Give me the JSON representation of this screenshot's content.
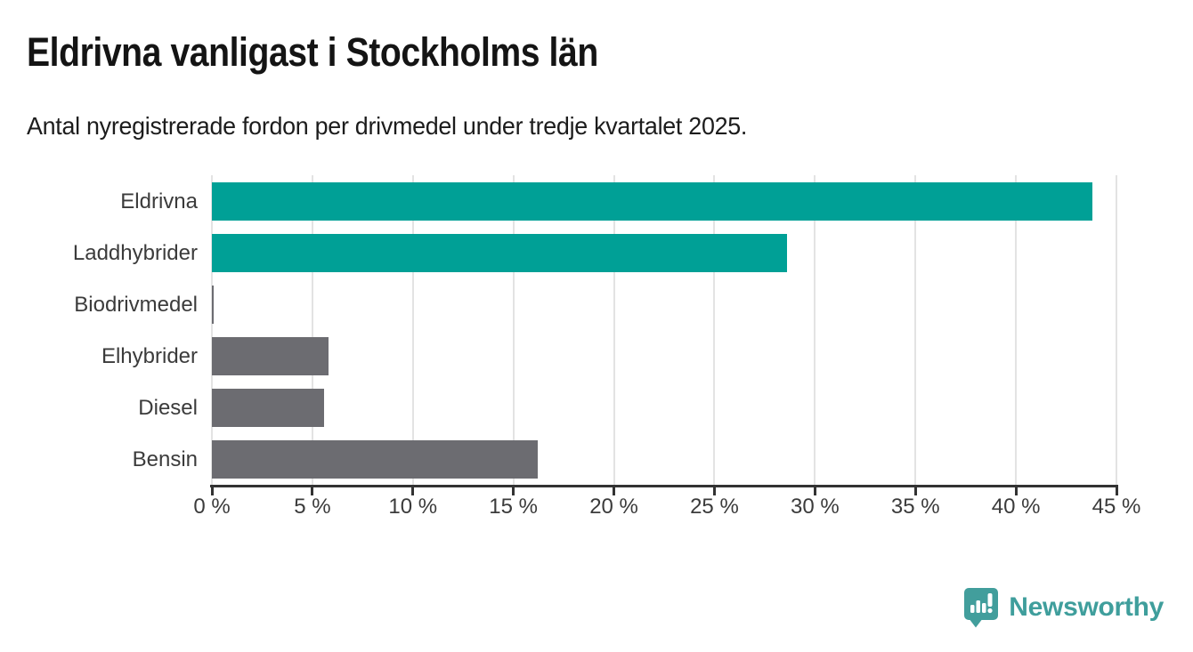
{
  "header": {
    "title": "Eldrivna vanligast i Stockholms län",
    "subtitle": "Antal nyregistrerade fordon per drivmedel under tredje kvartalet 2025."
  },
  "chart_data": {
    "type": "bar",
    "orientation": "horizontal",
    "title": "Eldrivna vanligast i Stockholms län",
    "subtitle": "Antal nyregistrerade fordon per drivmedel under tredje kvartalet 2025.",
    "categories": [
      "Eldrivna",
      "Laddhybrider",
      "Biodrivmedel",
      "Elhybrider",
      "Diesel",
      "Bensin"
    ],
    "values": [
      43.8,
      28.6,
      0.1,
      5.8,
      5.6,
      16.2
    ],
    "bar_colors": [
      "#00a096",
      "#00a096",
      "#6c6c71",
      "#6c6c71",
      "#6c6c71",
      "#6c6c71"
    ],
    "unit": "%",
    "xlabel": "",
    "ylabel": "",
    "xlim": [
      0,
      45
    ],
    "x_ticks": [
      0,
      5,
      10,
      15,
      20,
      25,
      30,
      35,
      40,
      45
    ],
    "x_tick_labels": [
      "0 %",
      "5 %",
      "10 %",
      "15 %",
      "20 %",
      "25 %",
      "30 %",
      "35 %",
      "40 %",
      "45 %"
    ],
    "grid": "vertical-only",
    "legend": "none"
  },
  "colors": {
    "highlight": "#00a096",
    "muted": "#6c6c71",
    "gridline": "#e3e3e3",
    "axis": "#333333",
    "title_text": "#141414",
    "label_text": "#3b3b3b",
    "brand_teal": "#3f9e9c"
  },
  "footer": {
    "brand_name": "Newsworthy",
    "logo_icon": "bar-chart-speech-bubble-icon"
  }
}
